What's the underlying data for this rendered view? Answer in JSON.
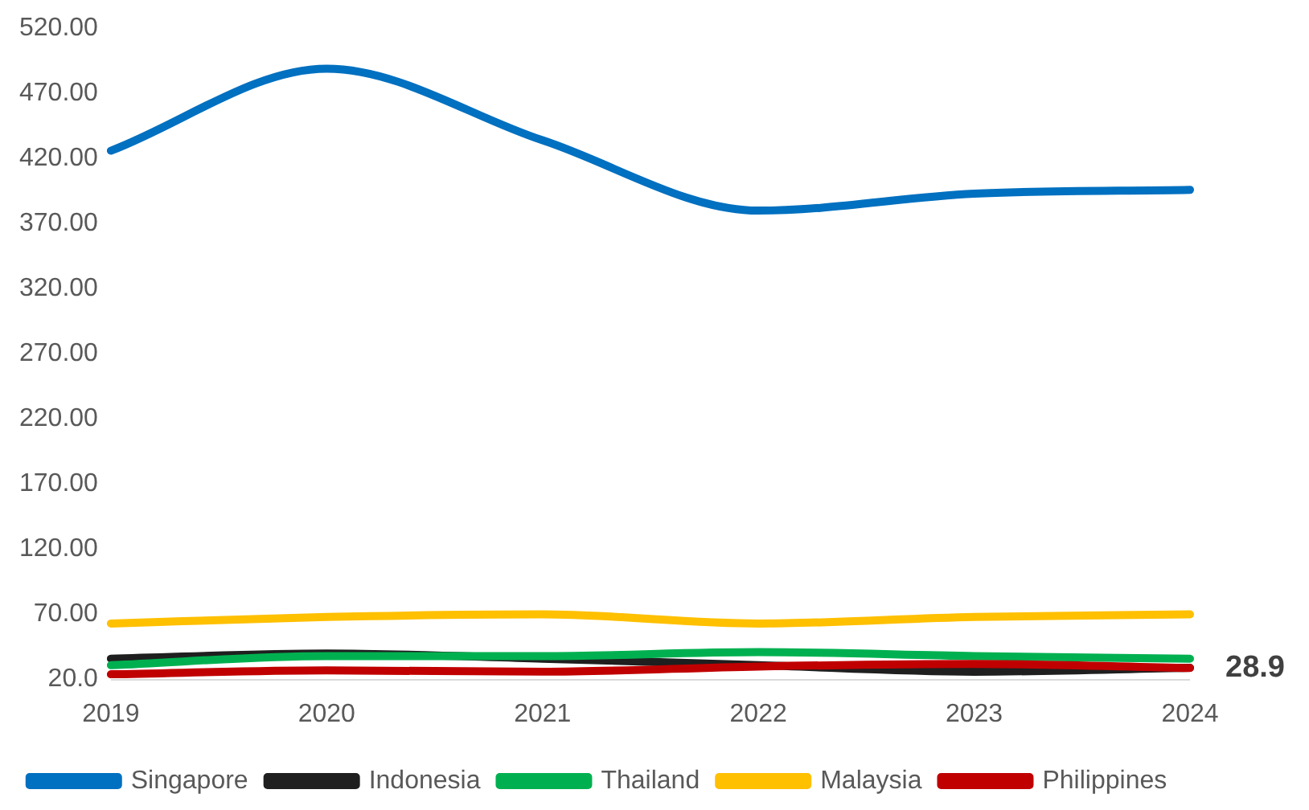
{
  "chart_data": {
    "type": "line",
    "categories": [
      "2019",
      "2020",
      "2021",
      "2022",
      "2023",
      "2024"
    ],
    "series": [
      {
        "name": "Singapore",
        "color": "#0070c0",
        "values": [
          426,
          489,
          434,
          380,
          393,
          396
        ]
      },
      {
        "name": "Indonesia",
        "color": "#1f1f1f",
        "values": [
          36,
          40,
          36,
          31,
          26,
          29
        ]
      },
      {
        "name": "Thailand",
        "color": "#00b050",
        "values": [
          31,
          38,
          38,
          41,
          38,
          36
        ]
      },
      {
        "name": "Malaysia",
        "color": "#ffc000",
        "values": [
          63,
          68,
          70,
          63,
          68,
          70
        ]
      },
      {
        "name": "Philippines",
        "color": "#c00000",
        "values": [
          24,
          27,
          26,
          30,
          32,
          28.9
        ]
      }
    ],
    "ylim": [
      20,
      520
    ],
    "yticks": [
      {
        "value": 20,
        "label": "20.0"
      },
      {
        "value": 70,
        "label": "70.00"
      },
      {
        "value": 120,
        "label": "120.00"
      },
      {
        "value": 170,
        "label": "170.00"
      },
      {
        "value": 220,
        "label": "220.00"
      },
      {
        "value": 270,
        "label": "270.00"
      },
      {
        "value": 320,
        "label": "320.00"
      },
      {
        "value": 370,
        "label": "370.00"
      },
      {
        "value": 420,
        "label": "420.00"
      },
      {
        "value": 470,
        "label": "470.00"
      },
      {
        "value": 520,
        "label": "520.00"
      }
    ],
    "annotations": [
      {
        "text": "28.9",
        "x": "2024",
        "y": 28.9
      }
    ],
    "grid": false,
    "legend": "bottom",
    "marker": "none",
    "line_style": "solid"
  }
}
